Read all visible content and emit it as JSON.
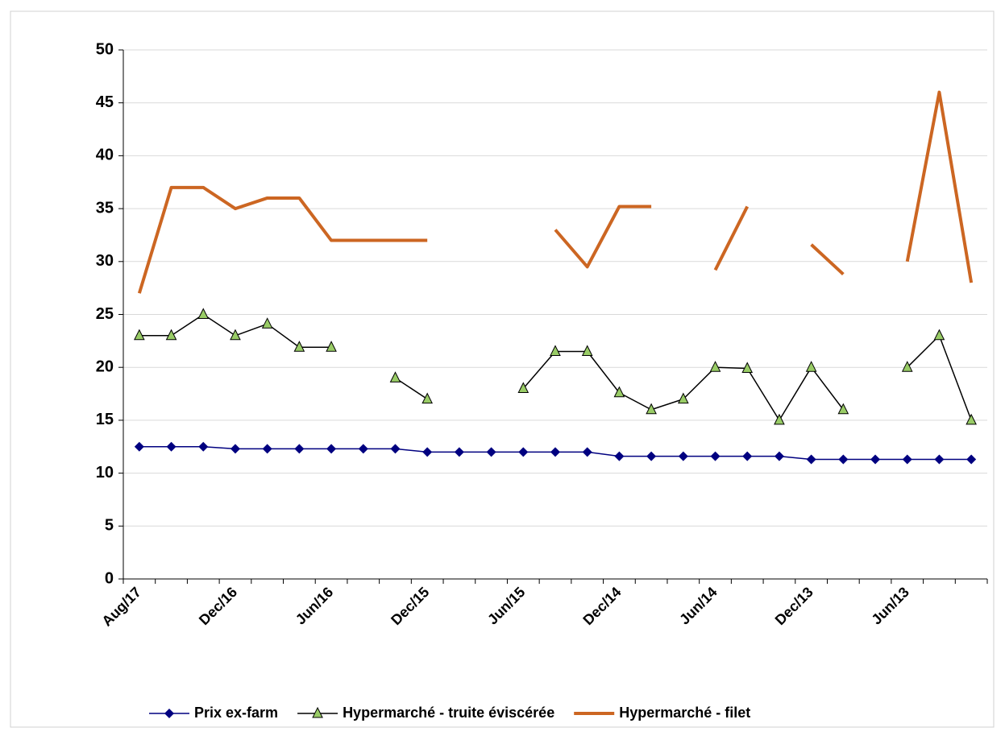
{
  "chart_data": {
    "type": "line",
    "categories": [
      "Aug/17",
      null,
      null,
      "Dec/16",
      null,
      null,
      "Jun/16",
      null,
      null,
      "Dec/15",
      null,
      null,
      "Jun/15",
      null,
      null,
      "Dec/14",
      null,
      null,
      "Jun/14",
      null,
      null,
      "Dec/13",
      null,
      null,
      "Jun/13",
      null,
      null
    ],
    "series": [
      {
        "name": "Prix ex-farm",
        "color": "#000080",
        "marker": "diamond",
        "values": [
          12.5,
          12.5,
          12.5,
          12.3,
          12.3,
          12.3,
          12.3,
          12.3,
          12.3,
          12.0,
          12.0,
          12.0,
          12.0,
          12.0,
          12.0,
          11.6,
          11.6,
          11.6,
          11.6,
          11.6,
          11.6,
          11.3,
          11.3,
          11.3,
          11.3,
          11.3,
          11.3
        ]
      },
      {
        "name": "Hypermarché - truite éviscérée",
        "color": "#000000",
        "marker": "triangle",
        "marker_color": "#99cc66",
        "values": [
          23,
          23,
          25,
          23,
          24.1,
          21.9,
          21.9,
          null,
          19,
          17,
          null,
          null,
          18,
          21.5,
          21.5,
          17.6,
          16,
          17,
          20,
          19.9,
          15,
          20,
          16,
          null,
          20,
          23,
          15
        ]
      },
      {
        "name": "Hypermarché - filet",
        "color": "#cc6622",
        "marker": "none",
        "values": [
          27,
          37,
          37,
          35,
          36,
          36,
          32,
          32,
          32,
          32,
          null,
          null,
          null,
          33,
          29.5,
          35.2,
          35.2,
          null,
          29.2,
          35.2,
          null,
          31.6,
          28.8,
          null,
          30,
          46,
          28
        ]
      }
    ],
    "ylim": [
      0,
      50
    ],
    "yticks": [
      0,
      5,
      10,
      15,
      20,
      25,
      30,
      35,
      40,
      45,
      50
    ],
    "grid": true,
    "legend": "bottom"
  }
}
